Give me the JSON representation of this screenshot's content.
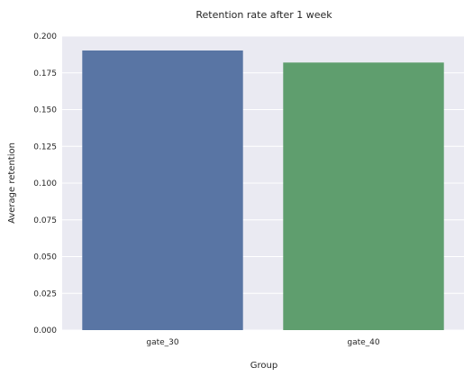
{
  "chart_data": {
    "type": "bar",
    "title": "Retention rate after 1 week",
    "xlabel": "Group",
    "ylabel": "Average retention",
    "categories": [
      "gate_30",
      "gate_40"
    ],
    "values": [
      0.1902,
      0.182
    ],
    "colors": [
      "#5975a4",
      "#5f9e6e"
    ],
    "ylim": [
      0,
      0.2
    ],
    "yticks": [
      "0.000",
      "0.025",
      "0.050",
      "0.075",
      "0.100",
      "0.125",
      "0.150",
      "0.175",
      "0.200"
    ],
    "grid": true,
    "background": "#eaeaf2"
  }
}
